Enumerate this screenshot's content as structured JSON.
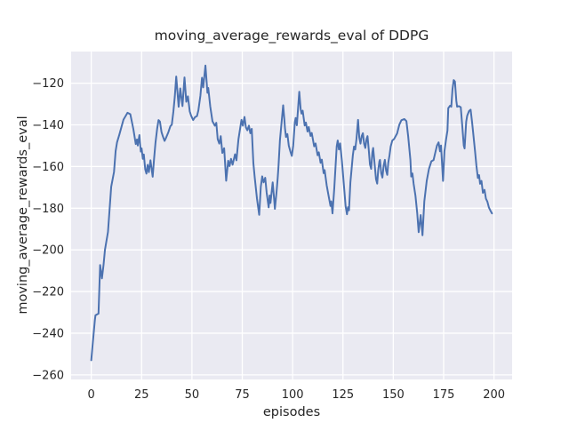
{
  "colors": {
    "figure_bg": "#ffffff",
    "axes_bg": "#eaeaf2",
    "grid": "#ffffff",
    "line": "#4c72b0",
    "text": "#262626"
  },
  "chart_data": {
    "type": "line",
    "title": "moving_average_rewards_eval of DDPG",
    "xlabel": "episodes",
    "ylabel": "moving_average_rewards_eval",
    "xlim": [
      -10,
      209
    ],
    "ylim": [
      -262.2,
      -104.8
    ],
    "x_ticks": [
      0,
      25,
      50,
      75,
      100,
      125,
      150,
      175,
      200
    ],
    "y_ticks": [
      -260,
      -240,
      -220,
      -200,
      -180,
      -160,
      -140,
      -120
    ],
    "grid": true,
    "legend_position": "none",
    "series": [
      {
        "name": "moving_average_rewards_eval",
        "x": [
          0,
          0.6,
          1.2,
          1.8,
          2.1,
          3.6,
          4.4,
          5.3,
          6.1,
          6.8,
          8.3,
          9.9,
          11.3,
          12.1,
          12.8,
          14,
          16,
          18,
          19.4,
          20.9,
          22.1,
          22.7,
          23.1,
          23.9,
          24.6,
          25,
          25.6,
          26.1,
          26.8,
          27.4,
          28,
          28.6,
          29.4,
          30.5,
          31.2,
          31.9,
          32.7,
          33.4,
          34.1,
          34.9,
          35.6,
          36.4,
          37.1,
          38.3,
          39.3,
          40,
          40.8,
          41.5,
          42.2,
          43.4,
          44.2,
          45.3,
          46.3,
          47.2,
          48,
          48.9,
          49.6,
          50.6,
          51.5,
          52.5,
          53.2,
          54.2,
          55,
          55.6,
          56.7,
          57.7,
          58.1,
          59.1,
          60.2,
          61.4,
          62.1,
          62.8,
          63.6,
          64.3,
          65.1,
          66,
          67,
          68,
          68.7,
          69.4,
          70.2,
          71.4,
          72.1,
          73.1,
          73.9,
          74.6,
          75.3,
          76.1,
          76.8,
          77.5,
          78.3,
          79,
          79.7,
          80.5,
          81.2,
          82.3,
          83.4,
          84.2,
          84.9,
          85.6,
          86.4,
          87.1,
          88.1,
          88.6,
          89,
          90.1,
          90.8,
          91.2,
          92,
          92.6,
          93,
          93.7,
          94.5,
          95.3,
          95.9,
          96.2,
          96.7,
          97.4,
          98.1,
          98.9,
          99.6,
          100.3,
          101.1,
          101.5,
          102.1,
          103.3,
          104,
          104.4,
          105,
          106,
          106.6,
          107.4,
          108,
          108.9,
          109.5,
          110.7,
          111.4,
          112.4,
          113,
          113.9,
          114.5,
          115.4,
          115.9,
          116.9,
          117.7,
          118.8,
          119.2,
          119.8,
          120.7,
          121.3,
          121.9,
          122.4,
          123,
          123.6,
          124.5,
          125.1,
          125.7,
          126.3,
          127,
          127.5,
          128,
          128.7,
          129.3,
          129.9,
          130.5,
          131.1,
          131.7,
          132.5,
          133.1,
          133.7,
          134.3,
          134.9,
          135.5,
          136.1,
          136.7,
          137.2,
          137.8,
          138.4,
          139,
          139.6,
          140,
          140.8,
          141.4,
          142,
          142.5,
          143.1,
          143.4,
          144,
          144.6,
          145.2,
          145.8,
          146.4,
          147,
          147.5,
          148.1,
          148.7,
          149.5,
          150.4,
          151.9,
          153,
          154,
          155.5,
          156.5,
          157.4,
          158.5,
          158.9,
          159.5,
          160.1,
          161,
          161.9,
          162.6,
          163.6,
          164.5,
          165.4,
          166.6,
          167.7,
          168.9,
          170,
          171,
          171.7,
          172.5,
          173.2,
          173.7,
          174.7,
          175.4,
          176.2,
          176.9,
          177.3,
          178.2,
          178.8,
          179.4,
          180,
          180.6,
          181.3,
          181.7,
          182.5,
          183.5,
          184.2,
          185,
          185.4,
          186.2,
          186.7,
          187.6,
          188.4,
          189.1,
          189.7,
          190.6,
          191.3,
          192,
          192.6,
          193.1,
          193.8,
          194.5,
          195.3,
          196,
          196.7,
          197.5,
          198.2,
          199
        ],
        "y": [
          -253,
          -246.4,
          -240,
          -233.6,
          -231.4,
          -230.6,
          -207.3,
          -213.7,
          -207.2,
          -200,
          -191.4,
          -169.7,
          -162.6,
          -152.6,
          -148.4,
          -144.5,
          -137.5,
          -134.2,
          -134.9,
          -142,
          -149.2,
          -147,
          -149.9,
          -144.9,
          -152.8,
          -151.3,
          -156.3,
          -154.2,
          -161.3,
          -163.4,
          -159.2,
          -162.7,
          -157,
          -164.9,
          -156.3,
          -148.5,
          -142,
          -137.7,
          -138.4,
          -143.5,
          -145.6,
          -147.7,
          -146.3,
          -143.5,
          -140.6,
          -139.9,
          -133.5,
          -126.3,
          -116.8,
          -131.3,
          -122.5,
          -131,
          -117.2,
          -128.9,
          -126.3,
          -133.5,
          -135.6,
          -137.7,
          -136.3,
          -135.8,
          -133,
          -126,
          -117.4,
          -122,
          -111.5,
          -124.6,
          -122.3,
          -131.2,
          -138.3,
          -140.4,
          -139,
          -146.9,
          -149,
          -145.4,
          -153.5,
          -151.2,
          -166.8,
          -157.2,
          -159.8,
          -156.3,
          -159.1,
          -154.1,
          -157,
          -146.9,
          -141.9,
          -137.6,
          -140.4,
          -136.2,
          -141.2,
          -142.6,
          -140.4,
          -144,
          -141.9,
          -158.3,
          -165.4,
          -175.4,
          -183.2,
          -169.7,
          -164.7,
          -167.6,
          -165.4,
          -172.5,
          -179.6,
          -173.9,
          -177.5,
          -167.6,
          -175.4,
          -180.3,
          -172.5,
          -165.4,
          -159.7,
          -147.4,
          -139,
          -130.6,
          -137.4,
          -141.6,
          -145.8,
          -144.4,
          -150,
          -152.8,
          -154.9,
          -150,
          -138.8,
          -136.7,
          -140.2,
          -124.1,
          -132.5,
          -134.6,
          -133.2,
          -140.3,
          -138.9,
          -143.2,
          -141,
          -145.3,
          -143.9,
          -150.3,
          -148.9,
          -154.6,
          -153.2,
          -158.2,
          -156.7,
          -163.2,
          -161.7,
          -168.9,
          -173.2,
          -178.9,
          -176.7,
          -182.5,
          -170.3,
          -160.3,
          -150.3,
          -147.5,
          -151.8,
          -148.9,
          -157.5,
          -164.6,
          -171.7,
          -178.9,
          -182.9,
          -179.5,
          -181,
          -167.5,
          -161.1,
          -154.7,
          -150.4,
          -151.8,
          -146.8,
          -137.6,
          -146.1,
          -149,
          -145.4,
          -144,
          -149,
          -151.1,
          -146.8,
          -145.4,
          -151.8,
          -158.9,
          -161.1,
          -153.2,
          -151.1,
          -159.6,
          -166,
          -168.2,
          -161.8,
          -157.5,
          -156.8,
          -163.2,
          -165.3,
          -159.6,
          -156.8,
          -161.8,
          -164,
          -158.2,
          -154.7,
          -150.4,
          -147.5,
          -146.8,
          -144.1,
          -139.9,
          -137.8,
          -137.2,
          -138.2,
          -145.6,
          -156.9,
          -164.8,
          -163.3,
          -168.3,
          -174,
          -182.6,
          -191.5,
          -183.3,
          -193,
          -176.8,
          -166.9,
          -161.2,
          -157.5,
          -156.9,
          -152.7,
          -149.9,
          -148.4,
          -152.7,
          -149.9,
          -166.9,
          -152.7,
          -147,
          -142.7,
          -132,
          -130.8,
          -131.3,
          -122.8,
          -118.5,
          -119.2,
          -128.4,
          -131.3,
          -131,
          -131.5,
          -139.9,
          -149.9,
          -151.3,
          -138.5,
          -135.6,
          -133.4,
          -132.7,
          -138.5,
          -144.1,
          -152.7,
          -159.8,
          -165.5,
          -164.1,
          -168.3,
          -166.9,
          -172.6,
          -171.2,
          -175.4,
          -176.8,
          -179.7,
          -181.1,
          -182.5
        ]
      }
    ]
  }
}
